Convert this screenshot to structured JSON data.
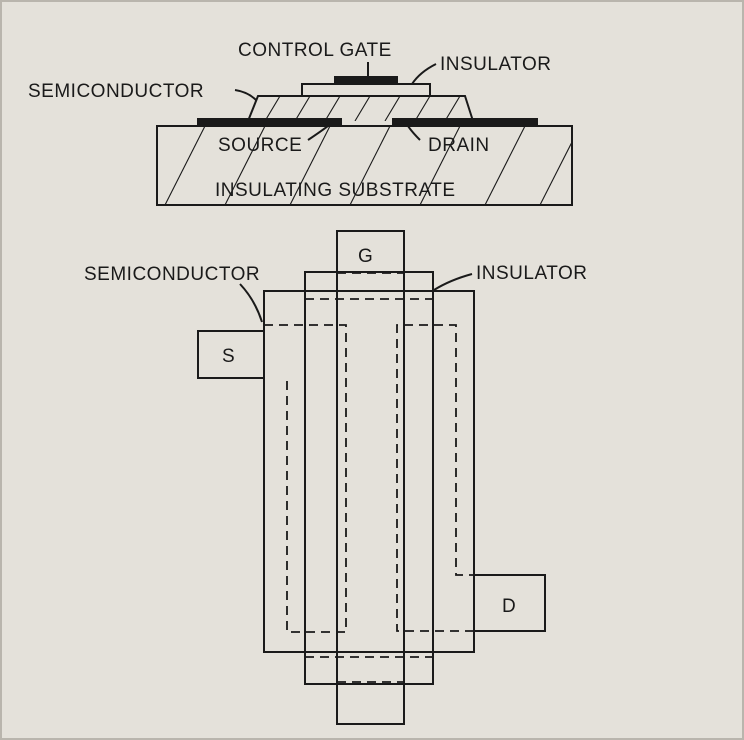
{
  "cross_section": {
    "control_gate": "CONTROL GATE",
    "insulator": "INSULATOR",
    "semiconductor": "SEMICONDUCTOR",
    "source": "SOURCE",
    "drain": "DRAIN",
    "substrate": "INSULATING SUBSTRATE"
  },
  "top_view": {
    "gate": "G",
    "source": "S",
    "drain": "D",
    "semiconductor": "SEMICONDUCTOR",
    "insulator": "INSULATOR"
  }
}
